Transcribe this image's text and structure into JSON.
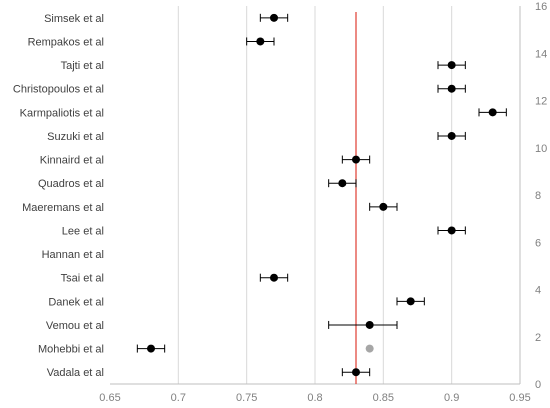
{
  "chart_data": {
    "type": "scatter",
    "title": "",
    "xlabel": "",
    "ylabel": "",
    "xlim": [
      0.65,
      0.95
    ],
    "x_ticks": [
      0.65,
      0.7,
      0.75,
      0.8,
      0.85,
      0.9,
      0.95
    ],
    "x_tick_labels": [
      "0.65",
      "0.7",
      "0.75",
      "0.8",
      "0.85",
      "0.9",
      "0.95"
    ],
    "ylim": [
      0,
      16
    ],
    "y_ticks": [
      0,
      2,
      4,
      6,
      8,
      10,
      12,
      14,
      16
    ],
    "y_tick_labels": [
      "0",
      "2",
      "4",
      "6",
      "8",
      "10",
      "12",
      "14",
      "16"
    ],
    "grid": "vertical",
    "reference_line": {
      "x": 0.83,
      "color": "#e03c31"
    },
    "point_color": "#000000",
    "point_color_gray": "#a6a6a6",
    "studies": [
      {
        "label": "Simsek et al",
        "y": 15.5,
        "x": 0.77,
        "lo": 0.76,
        "hi": 0.78
      },
      {
        "label": "Rempakos et al",
        "y": 14.5,
        "x": 0.76,
        "lo": 0.75,
        "hi": 0.77
      },
      {
        "label": "Tajti et al",
        "y": 13.5,
        "x": 0.9,
        "lo": 0.89,
        "hi": 0.91
      },
      {
        "label": "Christopoulos et al",
        "y": 12.5,
        "x": 0.9,
        "lo": 0.89,
        "hi": 0.91
      },
      {
        "label": "Karmpaliotis et al",
        "y": 11.5,
        "x": 0.93,
        "lo": 0.92,
        "hi": 0.94
      },
      {
        "label": "Suzuki et al",
        "y": 10.5,
        "x": 0.9,
        "lo": 0.89,
        "hi": 0.91
      },
      {
        "label": "Kinnaird et al",
        "y": 9.5,
        "x": 0.83,
        "lo": 0.82,
        "hi": 0.84
      },
      {
        "label": "Quadros et al",
        "y": 8.5,
        "x": 0.82,
        "lo": 0.81,
        "hi": 0.83
      },
      {
        "label": "Maeremans et al",
        "y": 7.5,
        "x": 0.85,
        "lo": 0.84,
        "hi": 0.86
      },
      {
        "label": "Lee et al",
        "y": 6.5,
        "x": 0.9,
        "lo": 0.89,
        "hi": 0.91
      },
      {
        "label": "Hannan et al",
        "y": 5.5,
        "x": null,
        "lo": null,
        "hi": null
      },
      {
        "label": "Tsai et al",
        "y": 4.5,
        "x": 0.77,
        "lo": 0.76,
        "hi": 0.78
      },
      {
        "label": "Danek et al",
        "y": 3.5,
        "x": 0.87,
        "lo": 0.86,
        "hi": 0.88
      },
      {
        "label": "Vemou et al",
        "y": 2.5,
        "x": 0.84,
        "lo": 0.81,
        "hi": 0.86
      },
      {
        "label": "Mohebbi et al",
        "y": 1.5,
        "x": 0.68,
        "lo": 0.67,
        "hi": 0.69,
        "extra_gray_x": 0.84
      },
      {
        "label": "Vadala et al",
        "y": 0.5,
        "x": 0.83,
        "lo": 0.82,
        "hi": 0.84
      }
    ]
  }
}
